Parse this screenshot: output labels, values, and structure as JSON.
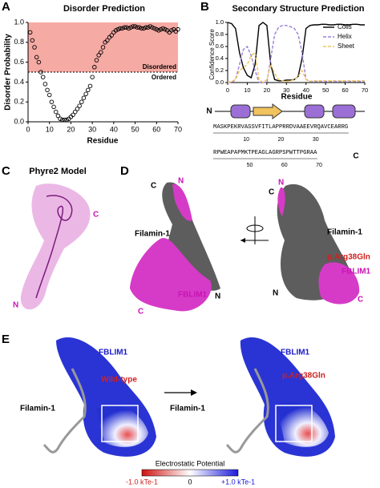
{
  "chart_data": [
    {
      "type": "scatter",
      "panel": "A",
      "title": "Disorder Prediction",
      "x_label": "Residue",
      "y_label": "Disorder Probability",
      "x": [
        1,
        2,
        3,
        4,
        5,
        6,
        7,
        8,
        9,
        10,
        11,
        12,
        13,
        14,
        15,
        16,
        17,
        18,
        19,
        20,
        21,
        22,
        23,
        24,
        25,
        26,
        27,
        28,
        29,
        30,
        31,
        32,
        33,
        34,
        35,
        36,
        37,
        38,
        39,
        40,
        41,
        42,
        43,
        44,
        45,
        46,
        47,
        48,
        49,
        50,
        51,
        52,
        53,
        54,
        55,
        56,
        57,
        58,
        59,
        60,
        61,
        62,
        63,
        64,
        65,
        66,
        67,
        68,
        69,
        70
      ],
      "values": [
        0.9,
        0.82,
        0.75,
        0.65,
        0.6,
        0.5,
        0.45,
        0.38,
        0.32,
        0.27,
        0.2,
        0.15,
        0.1,
        0.06,
        0.03,
        0.02,
        0.02,
        0.02,
        0.03,
        0.05,
        0.07,
        0.1,
        0.13,
        0.16,
        0.2,
        0.24,
        0.28,
        0.32,
        0.36,
        0.45,
        0.55,
        0.62,
        0.67,
        0.7,
        0.75,
        0.8,
        0.82,
        0.85,
        0.87,
        0.9,
        0.92,
        0.93,
        0.94,
        0.94,
        0.95,
        0.95,
        0.94,
        0.95,
        0.96,
        0.96,
        0.95,
        0.95,
        0.94,
        0.94,
        0.95,
        0.95,
        0.96,
        0.95,
        0.94,
        0.93,
        0.92,
        0.93,
        0.94,
        0.93,
        0.92,
        0.9,
        0.92,
        0.93,
        0.91,
        0.93
      ],
      "color": "#000000",
      "threshold": 0.5,
      "shade_color": "#f6aaa4",
      "annotations": [
        "Disordered",
        "Ordered"
      ],
      "xlim": [
        0,
        70
      ],
      "xticks": [
        0,
        10,
        20,
        30,
        40,
        50,
        60,
        70
      ],
      "ylim": [
        0,
        1
      ],
      "yticks": [
        {
          "value": 0,
          "label": "0.0"
        },
        {
          "value": 0.2,
          "label": "0.2"
        },
        {
          "value": 0.4,
          "label": "0.4"
        },
        {
          "value": 0.6,
          "label": "0.6"
        },
        {
          "value": 0.8,
          "label": "0.8"
        },
        {
          "value": 1,
          "label": "1.0"
        }
      ]
    },
    {
      "type": "line",
      "panel": "B",
      "title": "Secondary Structure Prediction",
      "x_label": "Residue",
      "y_label": "Confidence Score",
      "x": [
        0,
        2,
        4,
        6,
        8,
        10,
        12,
        14,
        16,
        18,
        20,
        22,
        24,
        26,
        28,
        30,
        32,
        34,
        36,
        38,
        40,
        42,
        44,
        46,
        48,
        50,
        52,
        54,
        56,
        58,
        60,
        62,
        64,
        66,
        68,
        70
      ],
      "series": [
        {
          "name": "Coils",
          "color": "#000000",
          "dash": false,
          "values": [
            1.0,
            0.98,
            0.9,
            0.5,
            0.25,
            0.12,
            0.08,
            0.3,
            0.95,
            1.0,
            0.95,
            0.3,
            0.05,
            0.03,
            0.03,
            0.04,
            0.04,
            0.05,
            0.1,
            0.4,
            0.9,
            0.95,
            0.96,
            0.96,
            0.97,
            0.97,
            0.96,
            0.96,
            0.97,
            0.97,
            0.96,
            0.96,
            0.97,
            0.97,
            0.96,
            0.96
          ]
        },
        {
          "name": "Helix",
          "color": "#9b7fd8",
          "dash": true,
          "values": [
            0,
            0,
            0.05,
            0.3,
            0.55,
            0.6,
            0.45,
            0.2,
            0,
            0,
            0,
            0.4,
            0.8,
            0.92,
            0.95,
            0.95,
            0.93,
            0.9,
            0.8,
            0.5,
            0.05,
            0.02,
            0.02,
            0.02,
            0.02,
            0.02,
            0.02,
            0.02,
            0.02,
            0.02,
            0.02,
            0.02,
            0.02,
            0.02,
            0.02,
            0.02
          ]
        },
        {
          "name": "Sheet",
          "color": "#f0c35e",
          "dash": true,
          "values": [
            0,
            0.02,
            0.05,
            0.2,
            0.25,
            0.3,
            0.45,
            0.5,
            0.05,
            0,
            0.05,
            0.3,
            0.15,
            0.05,
            0.03,
            0.02,
            0.03,
            0.05,
            0.1,
            0.2,
            0.05,
            0.02,
            0.03,
            0.03,
            0.03,
            0.03,
            0.03,
            0.03,
            0.03,
            0.03,
            0.03,
            0.03,
            0.03,
            0.03,
            0.03,
            0.03
          ]
        }
      ],
      "legend": "upper right",
      "xlim": [
        0,
        70
      ],
      "xticks": [
        0,
        10,
        20,
        30,
        40,
        50,
        60,
        70
      ],
      "ylim": [
        0,
        1
      ],
      "yticks": [
        {
          "value": 0,
          "label": "0.0"
        },
        {
          "value": 0.2,
          "label": "0.2"
        },
        {
          "value": 0.4,
          "label": "0.4"
        },
        {
          "value": 0.6,
          "label": "0.6"
        },
        {
          "value": 0.8,
          "label": "0.8"
        },
        {
          "value": 1,
          "label": "1.0"
        }
      ]
    }
  ],
  "sequence": {
    "n_label": "N",
    "c_label": "C",
    "lines": [
      {
        "text": "MASKPEKRVASSVFITLAPPRRDVAAEEVRQAVCEARRG",
        "ticks": [
          10,
          20,
          30
        ]
      },
      {
        "text": "RPWEAPAPMKTPEAGLAGRPSPWTTPGRAA",
        "ticks": [
          50,
          60,
          70
        ]
      }
    ]
  },
  "panel_c": {
    "letter": "C",
    "title": "Phyre2 Model",
    "c_label": "C",
    "n_label": "N"
  },
  "panel_d": {
    "letter": "D",
    "left": {
      "c_top": "C",
      "n_top": "N",
      "filamin": "Filamin-1",
      "fblim": "FBLIM1",
      "n_bottom": "N",
      "c_bottom": "C"
    },
    "right": {
      "c_top": "C",
      "n_top": "N",
      "filamin": "Filamin-1",
      "mutation": "p.Arg38Gln",
      "fblim": "FBLIM1",
      "n_bottom": "N",
      "c_bottom": "C"
    }
  },
  "panel_e": {
    "letter": "E",
    "left": {
      "fblim": "FBLIM1",
      "variant": "Wild-type",
      "filamin": "Filamin-1"
    },
    "right": {
      "fblim": "FBLIM1",
      "variant": "p.Arg38Gln",
      "filamin": "Filamin-1"
    },
    "colorbar": {
      "title": "Electrostatic Potential",
      "min_label": "-1.0 kTe-1",
      "mid_label": "0",
      "max_label": "+1.0 kTe-1"
    }
  }
}
